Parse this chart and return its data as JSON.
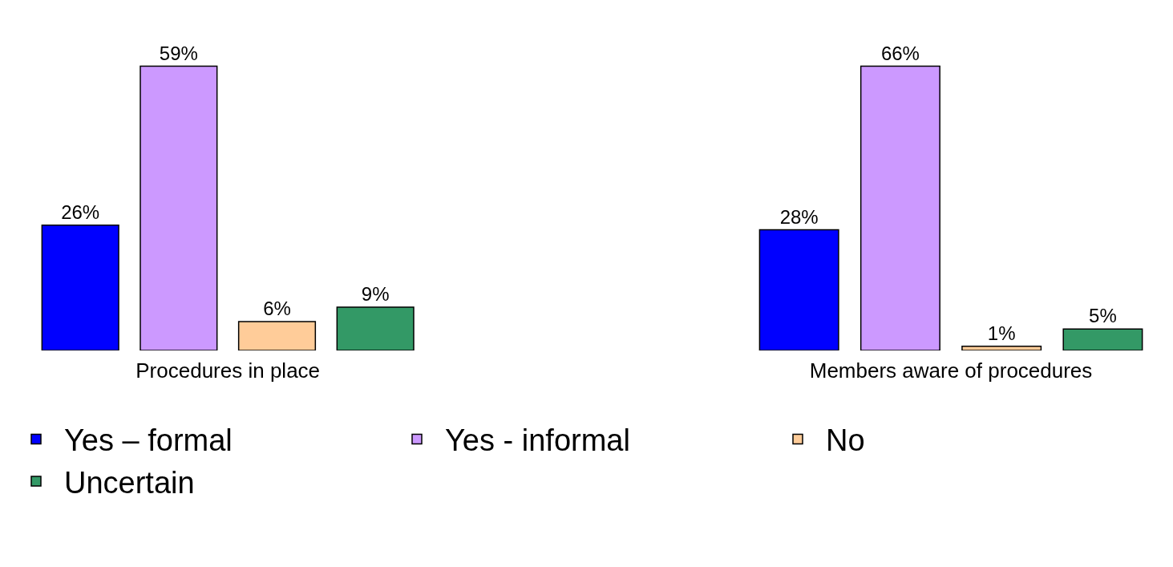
{
  "chart_data": [
    {
      "type": "bar",
      "xlabel": "Procedures in place",
      "categories": [
        null
      ],
      "legend": "bottom",
      "series": [
        {
          "name": "Yes – formal",
          "color": "#0000ff",
          "values": [
            26
          ],
          "value_labels": [
            "26%"
          ]
        },
        {
          "name": "Yes - informal",
          "color": "#cc99ff",
          "values": [
            59
          ],
          "value_labels": [
            "59%"
          ]
        },
        {
          "name": "No",
          "color": "#ffcc99",
          "values": [
            6
          ],
          "value_labels": [
            "6%"
          ]
        },
        {
          "name": "Uncertain",
          "color": "#339966",
          "values": [
            9
          ],
          "value_labels": [
            "9%"
          ]
        }
      ]
    },
    {
      "type": "bar",
      "xlabel": "Members aware of procedures",
      "categories": [
        null
      ],
      "series": [
        {
          "color": "#0000ff",
          "values": [
            28
          ],
          "value_labels": [
            "28%"
          ]
        },
        {
          "color": "#cc99ff",
          "values": [
            66
          ],
          "value_labels": [
            "66%"
          ]
        },
        {
          "color": "#ffcc99",
          "values": [
            1
          ],
          "value_labels": [
            "1%"
          ]
        },
        {
          "color": "#339966",
          "values": [
            5
          ],
          "value_labels": [
            "5%"
          ]
        }
      ]
    }
  ]
}
